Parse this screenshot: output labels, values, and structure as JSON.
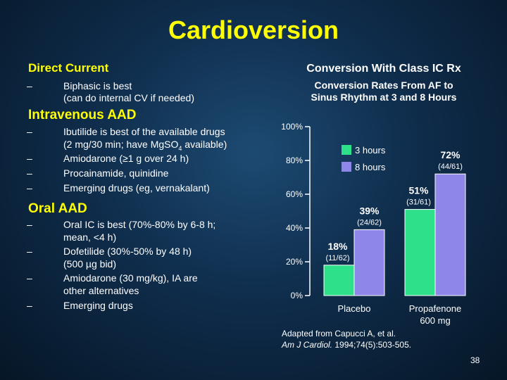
{
  "slide": {
    "title": "Cardioversion",
    "page_number": "38",
    "accent": "#ffff00"
  },
  "left": {
    "direct_current": {
      "heading": "Direct Current",
      "line1": "Biphasic is best",
      "line2": "(can do internal CV if needed)"
    },
    "intravenous": {
      "heading": "Intravenous AAD",
      "item1_line1": "Ibutilide is best of the available drugs",
      "item1_line2_pre": "(2 mg/30 min; have Mg",
      "item1_line2_so": "SO",
      "item1_line2_sub": "4",
      "item1_line2_post": " available)",
      "item2": "Amiodarone (≥1 g over 24 h)",
      "item3": "Procainamide, quinidine",
      "item4": "Emerging drugs (eg, vernakalant)"
    },
    "oral": {
      "heading": "Oral AAD",
      "item1_line1": "Oral IC is best (70%-80% by 6-8 h;",
      "item1_line2": "mean, <4 h)",
      "item2_line1": "Dofetilide (30%-50% by 48 h)",
      "item2_line2": "(500 µg bid)",
      "item3_line1": "Amiodarone (30 mg/kg), IA are",
      "item3_line2": "other alternatives",
      "item4": "Emerging drugs"
    },
    "dash": "–"
  },
  "right": {
    "heading": "Conversion With Class IC Rx",
    "subtitle_line1": "Conversion Rates From AF to",
    "subtitle_line2": "Sinus Rhythm at 3 and 8 Hours"
  },
  "citation": {
    "line1": "Adapted from Capucci A, et al.",
    "journal": "Am J Cardiol.",
    "details": " 1994;74(5):503-505."
  },
  "chart_data": {
    "type": "bar",
    "title": "Conversion Rates From AF to Sinus Rhythm at 3 and 8 Hours",
    "categories": [
      {
        "line1": "Placebo",
        "line2": ""
      },
      {
        "line1": "Propafenone",
        "line2": "600 mg"
      }
    ],
    "series": [
      {
        "name": "3 hours",
        "color": "#2ee08a",
        "values": [
          18,
          51
        ],
        "labels": [
          "18%",
          "51%"
        ],
        "counts": [
          "(11/62)",
          "(31/61)"
        ]
      },
      {
        "name": "8 hours",
        "color": "#8f86ea",
        "values": [
          39,
          72
        ],
        "labels": [
          "39%",
          "72%"
        ],
        "counts": [
          "(24/62)",
          "(44/61)"
        ]
      }
    ],
    "ylim": [
      0,
      100
    ],
    "yticks": [
      0,
      20,
      40,
      60,
      80,
      100
    ],
    "ytick_labels": [
      "0%",
      "20%",
      "40%",
      "60%",
      "80%",
      "100%"
    ],
    "legend_position": "top-right",
    "grid": false
  }
}
